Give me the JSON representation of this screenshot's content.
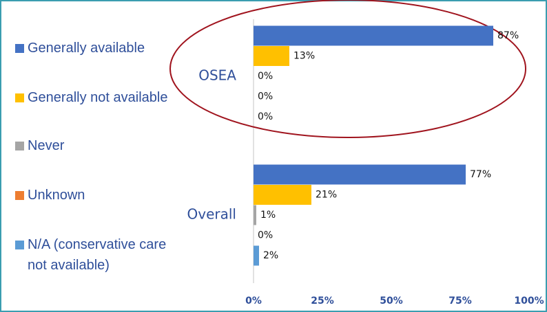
{
  "chart_data": {
    "type": "bar",
    "orientation": "horizontal",
    "categories": [
      "OSEA",
      "Overall"
    ],
    "series": [
      {
        "name": "Generally available",
        "color": "#4472c4",
        "values": [
          87,
          77
        ],
        "value_labels": [
          "87%",
          "77%"
        ]
      },
      {
        "name": "Generally not available",
        "color": "#ffc000",
        "values": [
          13,
          21
        ],
        "value_labels": [
          "13%",
          "21%"
        ]
      },
      {
        "name": "Never",
        "color": "#a5a5a5",
        "values": [
          0,
          1
        ],
        "value_labels": [
          "0%",
          "1%"
        ]
      },
      {
        "name": "Unknown",
        "color": "#ed7d31",
        "values": [
          0,
          0
        ],
        "value_labels": [
          "0%",
          "0%"
        ]
      },
      {
        "name": "N/A (conservative care not available)",
        "color": "#5b9bd5",
        "values": [
          0,
          2
        ],
        "value_labels": [
          "0%",
          "2%"
        ]
      }
    ],
    "xlim": [
      0,
      100
    ],
    "xticks": [
      {
        "value": 0,
        "label": "0%"
      },
      {
        "value": 25,
        "label": "25%"
      },
      {
        "value": 50,
        "label": "50%"
      },
      {
        "value": 75,
        "label": "75%"
      },
      {
        "value": 100,
        "label": "100%"
      }
    ],
    "grid": false,
    "legend": "left"
  }
}
